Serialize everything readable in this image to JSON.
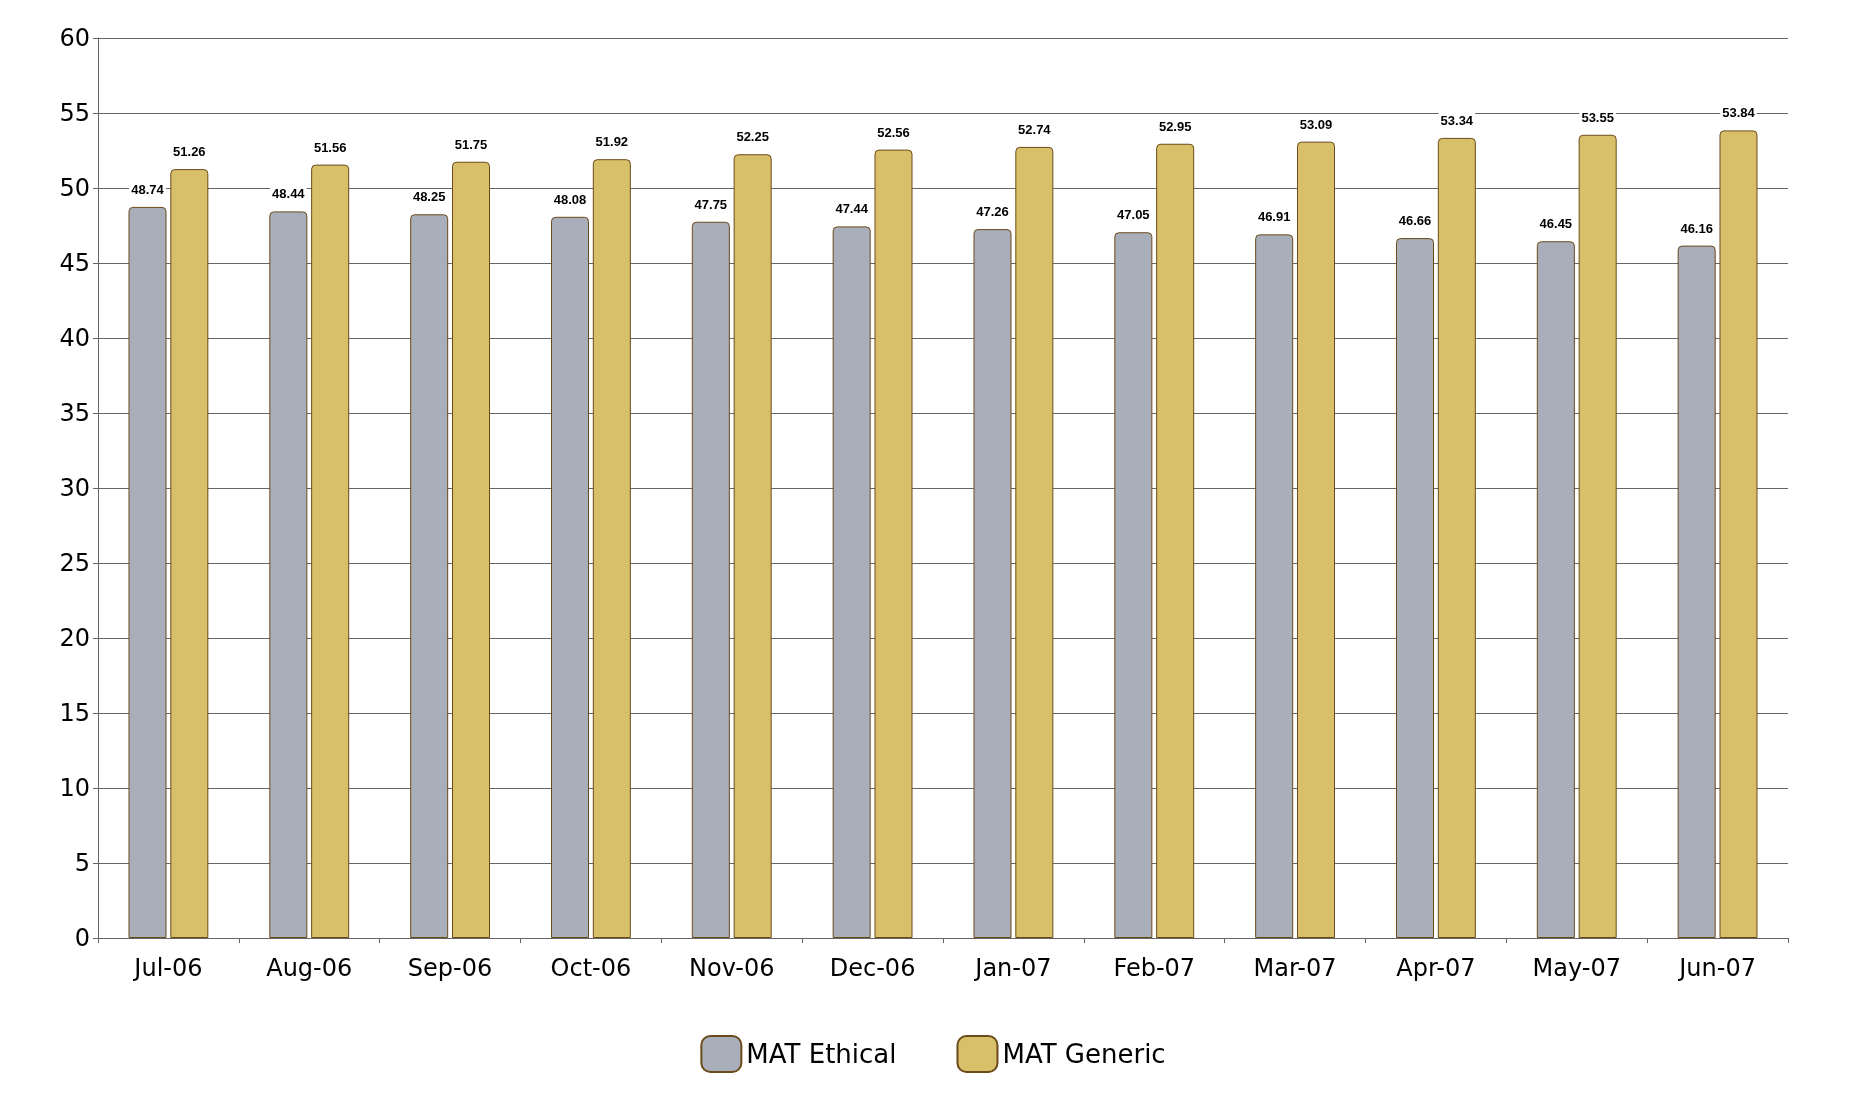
{
  "chart_data": {
    "type": "bar",
    "categories": [
      "Jul-06",
      "Aug-06",
      "Sep-06",
      "Oct-06",
      "Nov-06",
      "Dec-06",
      "Jan-07",
      "Feb-07",
      "Mar-07",
      "Apr-07",
      "May-07",
      "Jun-07"
    ],
    "series": [
      {
        "name": "MAT Ethical",
        "color": "#a9aebb",
        "values": [
          48.74,
          48.44,
          48.25,
          48.08,
          47.75,
          47.44,
          47.26,
          47.05,
          46.91,
          46.66,
          46.45,
          46.16
        ]
      },
      {
        "name": "MAT Generic",
        "color": "#d8c06a",
        "values": [
          51.26,
          51.56,
          51.75,
          51.92,
          52.25,
          52.56,
          52.74,
          52.95,
          53.09,
          53.34,
          53.55,
          53.84
        ]
      }
    ],
    "ylim": [
      0,
      60
    ],
    "yticks": [
      0,
      5,
      10,
      15,
      20,
      25,
      30,
      35,
      40,
      45,
      50,
      55,
      60
    ],
    "grid": "y",
    "legend": "bottom",
    "data_labels": true
  }
}
